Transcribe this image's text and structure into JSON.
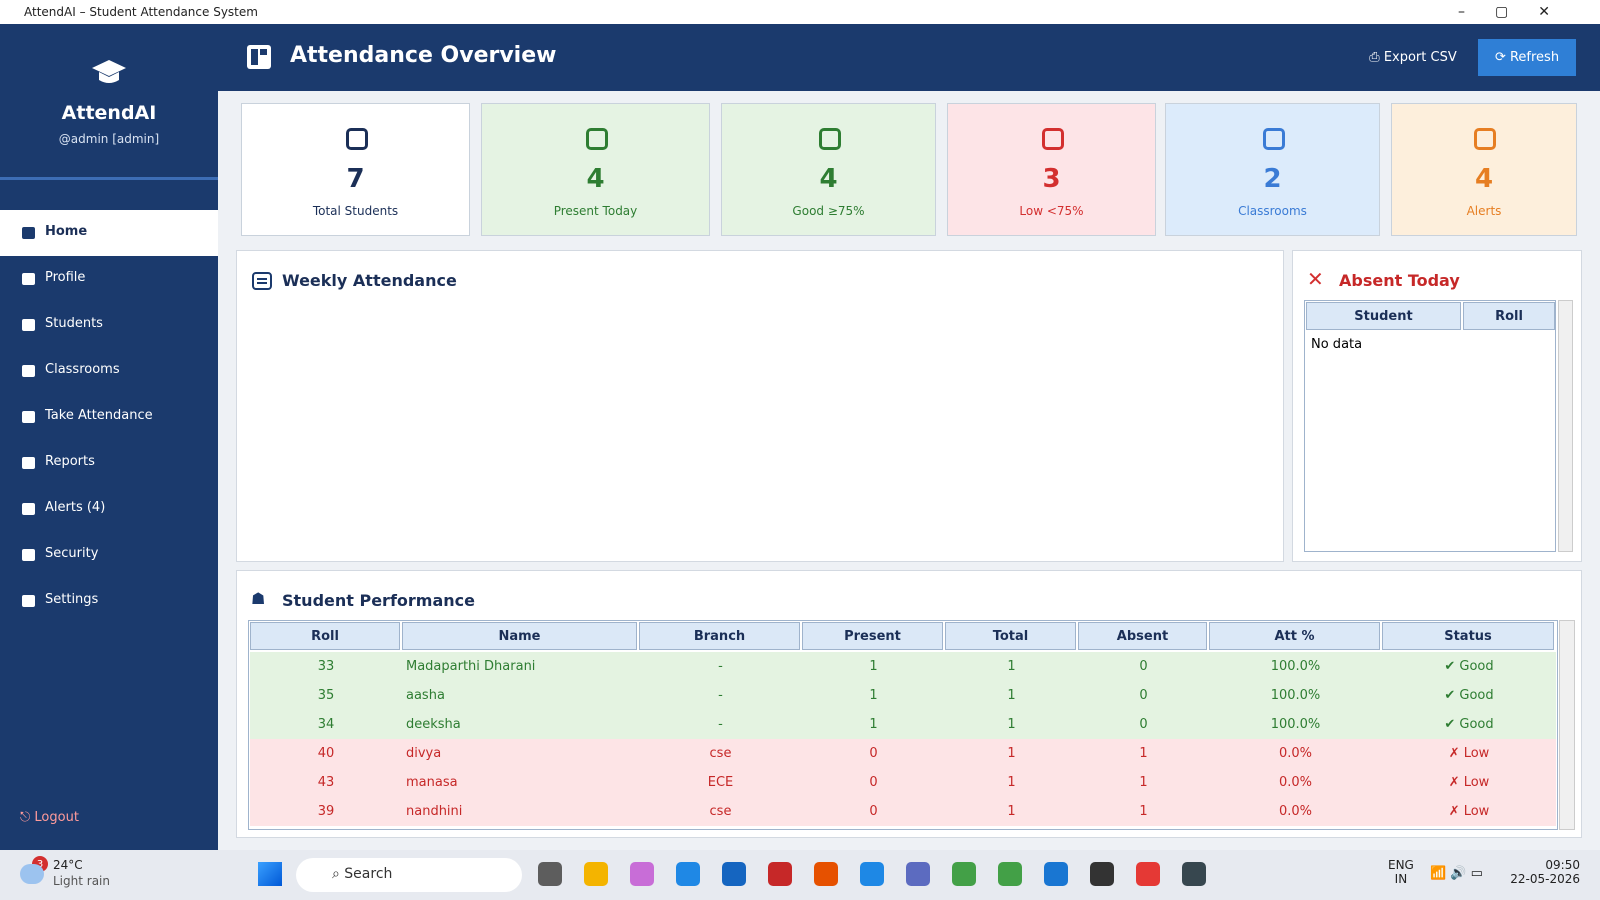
{
  "window": {
    "title": "AttendAI – Student Attendance System"
  },
  "sidebar": {
    "app_name": "AttendAI",
    "user": "@admin [admin]",
    "nav": [
      "Home",
      "Profile",
      "Students",
      "Classrooms",
      "Take Attendance",
      "Reports",
      "Alerts (4)",
      "Security",
      "Settings"
    ],
    "logout": "Logout"
  },
  "header": {
    "title": "Attendance Overview",
    "export": "Export CSV",
    "refresh": "Refresh"
  },
  "stats": [
    {
      "value": 7,
      "label": "Total Students",
      "color": "#1b2f57",
      "bg": "#ffffff"
    },
    {
      "value": 4,
      "label": "Present Today",
      "color": "#2e7d32",
      "bg": "#e5f3e3"
    },
    {
      "value": 4,
      "label": "Good ≥75%",
      "color": "#2e7d32",
      "bg": "#e5f3e3"
    },
    {
      "value": 3,
      "label": "Low <75%",
      "color": "#d32f2f",
      "bg": "#fde4e7"
    },
    {
      "value": 2,
      "label": "Classrooms",
      "color": "#3a7bd5",
      "bg": "#dcebfb"
    },
    {
      "value": 4,
      "label": "Alerts",
      "color": "#e67e22",
      "bg": "#fdefdc"
    }
  ],
  "weekly": {
    "title": "Weekly Attendance"
  },
  "absent": {
    "title": "Absent Today",
    "columns": [
      "Student",
      "Roll"
    ],
    "empty": "No data"
  },
  "performance": {
    "title": "Student Performance",
    "columns": [
      "Roll",
      "Name",
      "Branch",
      "Present",
      "Total",
      "Absent",
      "Att %",
      "Status"
    ],
    "rows": [
      {
        "cells": [
          33,
          "Madaparthi Dharani",
          "-",
          1,
          1,
          0,
          "100.0%",
          "✔ Good"
        ],
        "bg": "#e4f3e1",
        "color": "#2e7d32"
      },
      {
        "cells": [
          35,
          "aasha",
          "-",
          1,
          1,
          0,
          "100.0%",
          "✔ Good"
        ],
        "bg": "#e4f3e1",
        "color": "#2e7d32"
      },
      {
        "cells": [
          34,
          "deeksha",
          "-",
          1,
          1,
          0,
          "100.0%",
          "✔ Good"
        ],
        "bg": "#e4f3e1",
        "color": "#2e7d32"
      },
      {
        "cells": [
          40,
          "divya",
          "cse",
          0,
          1,
          1,
          "0.0%",
          "✗ Low"
        ],
        "bg": "#fde4e6",
        "color": "#c62828"
      },
      {
        "cells": [
          43,
          "manasa",
          "ECE",
          0,
          1,
          1,
          "0.0%",
          "✗ Low"
        ],
        "bg": "#fde4e6",
        "color": "#c62828"
      },
      {
        "cells": [
          39,
          "nandhini",
          "cse",
          0,
          1,
          1,
          "0.0%",
          "✗ Low"
        ],
        "bg": "#fde4e6",
        "color": "#c62828"
      }
    ]
  },
  "taskbar": {
    "badge": "3",
    "temp": "24°C",
    "weather": "Light rain",
    "search": "Search",
    "lang": "ENG",
    "region": "IN",
    "time": "09:50",
    "date": "22-05-2026"
  }
}
